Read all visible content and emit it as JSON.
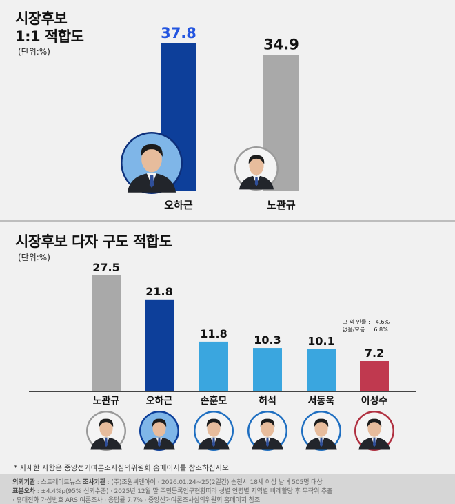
{
  "chart1": {
    "title_line1": "시장후보",
    "title_line2": "1:1 적합도",
    "unit": "(단위:%)"
  },
  "chart2": {
    "title": "시장후보 다자 구도 적합도",
    "unit": "(단위:%)",
    "other": [
      {
        "label": "그 외 인물 :",
        "value": "4.6%"
      },
      {
        "label": "없음/모름 :",
        "value": "6.8%"
      }
    ]
  },
  "chart_data": [
    {
      "type": "bar",
      "title": "시장후보 1:1 적합도",
      "ylabel": "(단위:%)",
      "categories": [
        "오하근",
        "노관규"
      ],
      "values": [
        37.8,
        34.9
      ],
      "colors": [
        "#0d3f9a",
        "#a9a9a9"
      ],
      "label_colors": [
        "#2355e0",
        "#111111"
      ]
    },
    {
      "type": "bar",
      "title": "시장후보 다자 구도 적합도",
      "ylabel": "(단위:%)",
      "categories": [
        "노관규",
        "오하근",
        "손훈모",
        "허석",
        "서동욱",
        "이성수"
      ],
      "values": [
        27.5,
        21.8,
        11.8,
        10.3,
        10.1,
        7.2
      ],
      "colors": [
        "#a9a9a9",
        "#0d3f9a",
        "#3aa6df",
        "#3aa6df",
        "#3aa6df",
        "#c0394f"
      ]
    }
  ],
  "footnote": "* 자세한 사항은 중앙선거여론조사심의위원회 홈페이지를 참조하십시오",
  "footer": {
    "line1_label1": "의뢰기관",
    "line1_value1": ": 스트레이트뉴스",
    "line1_label2": "조사기관",
    "line1_value2": ": (주)조원씨앤아이",
    "line1_value3": "· 2026.01.24~25(2일간) 순천시 18세 이상 남녀 505명 대상",
    "line2_label": "표본오차",
    "line2_value1": ": ±4.4%p(95% 신뢰수준)",
    "line2_value2": "· 2025년 12월 말 주민등록인구현황따라 성별 연령별 지역별 비례할당 후 무작위 추출",
    "line3_value1": "· 휴대전화 가상번호 ARS 여론조사",
    "line3_value2": "· 응답률 7.7%",
    "line3_value3": "· 중앙선거여론조사심의위원회 홈페이지 참조"
  }
}
